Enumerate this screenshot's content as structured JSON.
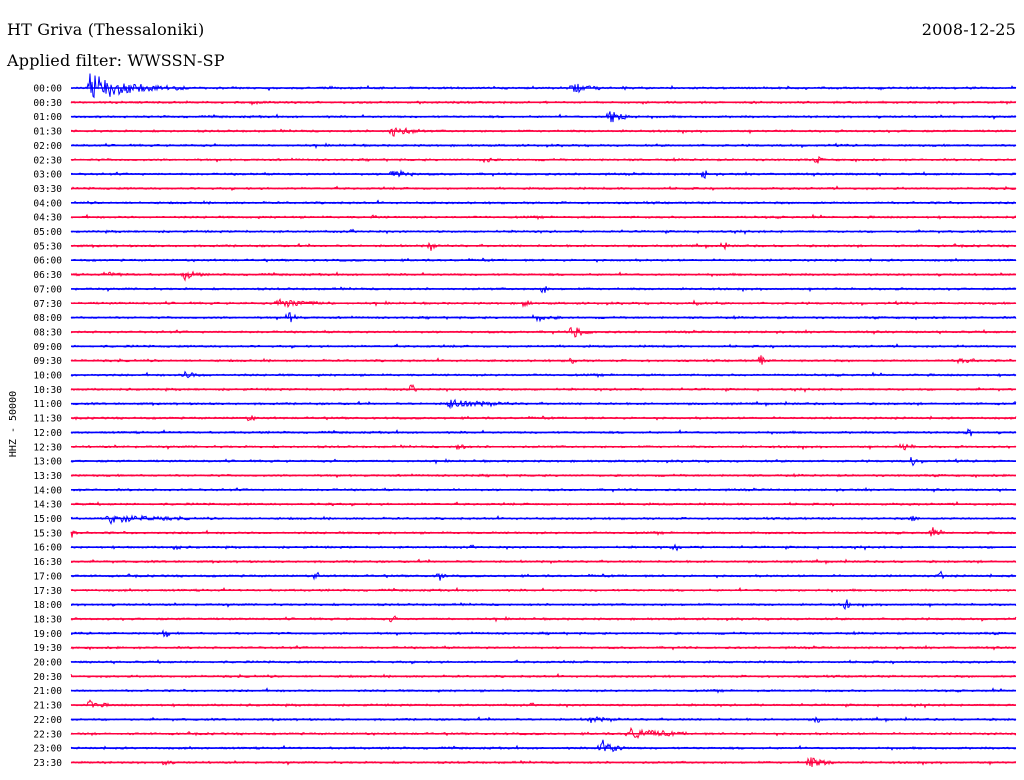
{
  "header": {
    "station": "HT Griva (Thessaloniki)",
    "date": "2008-12-25",
    "filter": "Applied filter: WWSSN-SP"
  },
  "colors": {
    "even_trace": "#0000ff",
    "odd_trace": "#ff0040"
  },
  "chart_data": {
    "type": "line",
    "title": "HT Griva (Thessaloniki)",
    "date": "2008-12-25",
    "filter": "Applied filter: WWSSN-SP",
    "ylabel": "HHZ - 50000",
    "xlabel": "",
    "grid": false,
    "trace_minutes": 30,
    "rows": [
      {
        "label": "00:00",
        "color": "blue",
        "events": [
          [
            0.02,
            14,
            0.07
          ],
          [
            0.53,
            6,
            0.02
          ]
        ]
      },
      {
        "label": "00:30",
        "color": "red",
        "events": [
          [
            0.19,
            2,
            0.01
          ]
        ]
      },
      {
        "label": "01:00",
        "color": "blue",
        "events": [
          [
            0.57,
            8,
            0.02
          ]
        ]
      },
      {
        "label": "01:30",
        "color": "red",
        "events": [
          [
            0.34,
            6,
            0.025
          ]
        ]
      },
      {
        "label": "02:00",
        "color": "blue",
        "events": []
      },
      {
        "label": "02:30",
        "color": "red",
        "events": [
          [
            0.44,
            4,
            0.005
          ],
          [
            0.79,
            3,
            0.005
          ]
        ]
      },
      {
        "label": "03:00",
        "color": "blue",
        "events": [
          [
            0.34,
            5,
            0.02
          ],
          [
            0.67,
            6,
            0.003
          ]
        ]
      },
      {
        "label": "03:30",
        "color": "red",
        "events": []
      },
      {
        "label": "04:00",
        "color": "blue",
        "events": []
      },
      {
        "label": "04:30",
        "color": "red",
        "events": [
          [
            0.32,
            2,
            0.004
          ]
        ]
      },
      {
        "label": "05:00",
        "color": "blue",
        "events": []
      },
      {
        "label": "05:30",
        "color": "red",
        "events": [
          [
            0.38,
            5,
            0.005
          ],
          [
            0.69,
            4,
            0.005
          ]
        ]
      },
      {
        "label": "06:00",
        "color": "blue",
        "events": []
      },
      {
        "label": "06:30",
        "color": "red",
        "events": [
          [
            0.12,
            6,
            0.015
          ],
          [
            0.04,
            2,
            0.02
          ]
        ]
      },
      {
        "label": "07:00",
        "color": "blue",
        "events": [
          [
            0.5,
            5,
            0.004
          ]
        ]
      },
      {
        "label": "07:30",
        "color": "red",
        "events": [
          [
            0.22,
            5,
            0.04
          ],
          [
            0.48,
            6,
            0.005
          ],
          [
            0.66,
            4,
            0.005
          ]
        ]
      },
      {
        "label": "08:00",
        "color": "blue",
        "events": [
          [
            0.23,
            6,
            0.01
          ],
          [
            0.49,
            4,
            0.02
          ]
        ]
      },
      {
        "label": "08:30",
        "color": "red",
        "events": [
          [
            0.53,
            8,
            0.015
          ]
        ]
      },
      {
        "label": "09:00",
        "color": "blue",
        "events": []
      },
      {
        "label": "09:30",
        "color": "red",
        "events": [
          [
            0.53,
            4,
            0.003
          ],
          [
            0.73,
            6,
            0.003
          ],
          [
            0.94,
            3,
            0.02
          ]
        ]
      },
      {
        "label": "10:00",
        "color": "blue",
        "events": [
          [
            0.12,
            3,
            0.02
          ]
        ]
      },
      {
        "label": "10:30",
        "color": "red",
        "events": [
          [
            0.36,
            5,
            0.004
          ]
        ]
      },
      {
        "label": "11:00",
        "color": "blue",
        "events": [
          [
            0.4,
            5,
            0.05
          ]
        ]
      },
      {
        "label": "11:30",
        "color": "red",
        "events": [
          [
            0.19,
            4,
            0.004
          ]
        ]
      },
      {
        "label": "12:00",
        "color": "blue",
        "events": [
          [
            0.95,
            6,
            0.004
          ]
        ]
      },
      {
        "label": "12:30",
        "color": "red",
        "events": [
          [
            0.41,
            5,
            0.006
          ],
          [
            0.88,
            4,
            0.01
          ]
        ]
      },
      {
        "label": "13:00",
        "color": "blue",
        "events": [
          [
            0.89,
            6,
            0.004
          ]
        ]
      },
      {
        "label": "13:30",
        "color": "red",
        "events": []
      },
      {
        "label": "14:00",
        "color": "blue",
        "events": []
      },
      {
        "label": "14:30",
        "color": "red",
        "events": [
          [
            0.27,
            4,
            0.005
          ]
        ]
      },
      {
        "label": "15:00",
        "color": "blue",
        "events": [
          [
            0.04,
            5,
            0.06
          ],
          [
            0.89,
            4,
            0.005
          ]
        ]
      },
      {
        "label": "15:30",
        "color": "red",
        "events": [
          [
            0.0,
            6,
            0.005
          ],
          [
            0.91,
            5,
            0.01
          ]
        ]
      },
      {
        "label": "16:00",
        "color": "blue",
        "events": [
          [
            0.11,
            5,
            0.004
          ],
          [
            0.64,
            5,
            0.004
          ]
        ]
      },
      {
        "label": "16:30",
        "color": "red",
        "events": []
      },
      {
        "label": "17:00",
        "color": "blue",
        "events": [
          [
            0.26,
            5,
            0.003
          ],
          [
            0.39,
            6,
            0.004
          ],
          [
            0.92,
            6,
            0.003
          ]
        ]
      },
      {
        "label": "17:30",
        "color": "red",
        "events": []
      },
      {
        "label": "18:00",
        "color": "blue",
        "events": [
          [
            0.82,
            7,
            0.003
          ]
        ]
      },
      {
        "label": "18:30",
        "color": "red",
        "events": [
          [
            0.34,
            4,
            0.004
          ]
        ]
      },
      {
        "label": "19:00",
        "color": "blue",
        "events": [
          [
            0.1,
            5,
            0.003
          ]
        ]
      },
      {
        "label": "19:30",
        "color": "red",
        "events": []
      },
      {
        "label": "20:00",
        "color": "blue",
        "events": []
      },
      {
        "label": "20:30",
        "color": "red",
        "events": []
      },
      {
        "label": "21:00",
        "color": "blue",
        "events": []
      },
      {
        "label": "21:30",
        "color": "red",
        "events": [
          [
            0.02,
            5,
            0.015
          ]
        ]
      },
      {
        "label": "22:00",
        "color": "blue",
        "events": [
          [
            0.55,
            3,
            0.02
          ],
          [
            0.79,
            4,
            0.003
          ]
        ]
      },
      {
        "label": "22:30",
        "color": "red",
        "events": [
          [
            0.59,
            6,
            0.05
          ]
        ]
      },
      {
        "label": "23:00",
        "color": "blue",
        "events": [
          [
            0.56,
            10,
            0.02
          ]
        ]
      },
      {
        "label": "23:30",
        "color": "red",
        "events": [
          [
            0.1,
            4,
            0.004
          ],
          [
            0.78,
            7,
            0.02
          ]
        ]
      }
    ]
  }
}
